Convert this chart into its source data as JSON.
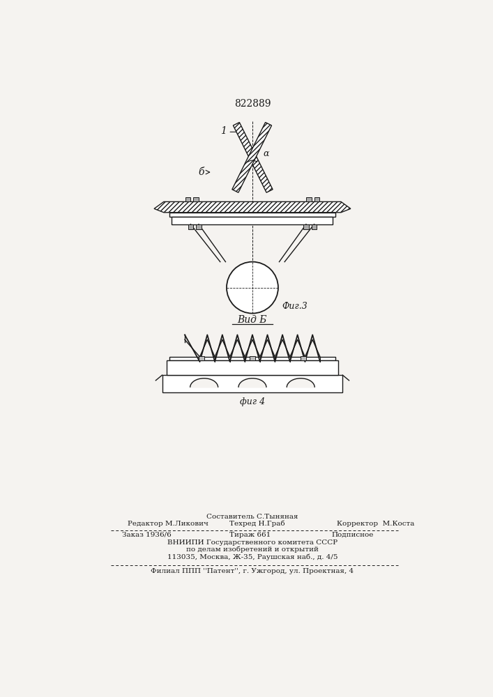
{
  "patent_number": "822889",
  "fig3_label": "Фиг.3",
  "fig4_label": "фиг 4",
  "vid_b_label": "Вид Б",
  "label_1": "1",
  "label_b": "б",
  "label_alpha": "α",
  "line1": "Составитель С.Тыняная",
  "line2a": "Редактор М.Ликович",
  "line2b": "Техред Н.Граб",
  "line2c": "Корректор  М.Коста",
  "line3a": "Заказ 1936/6",
  "line3b": "Тираж 661",
  "line3c": "Подписное",
  "line4": "ВНИИПИ Государственного комитета СССР",
  "line5": "по делам изобретений и открытий",
  "line6": "113035, Москва, Ж-35, Раушская наб., д. 4/5",
  "line7": "Филиал ППП ''Патент'', г. Ужгород, ул. Проектная, 4",
  "bg_color": "#f5f3f0"
}
